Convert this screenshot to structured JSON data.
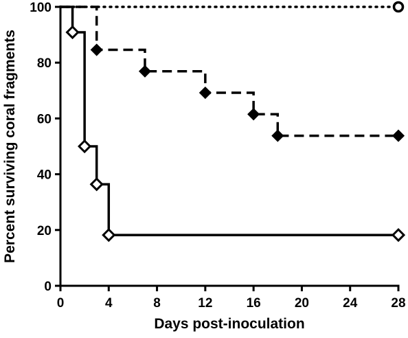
{
  "chart_data": {
    "type": "line",
    "step": true,
    "xlabel": "Days post-inoculation",
    "ylabel": "Percent surviving coral fragments",
    "xlim": [
      0,
      28
    ],
    "ylim": [
      0,
      100
    ],
    "xticks": [
      0,
      4,
      8,
      12,
      16,
      20,
      24,
      28
    ],
    "yticks": [
      0,
      20,
      40,
      60,
      80,
      100
    ],
    "grid": false,
    "legend": "none",
    "series": [
      {
        "line_style": "dotted",
        "marker": "open-circle",
        "x": [
          0,
          28
        ],
        "y": [
          100,
          100
        ],
        "marker_x": [
          28
        ],
        "marker_y": [
          100
        ]
      },
      {
        "line_style": "dashed",
        "marker": "filled-diamond",
        "x": [
          0,
          3,
          7,
          12,
          16,
          18,
          28
        ],
        "y": [
          100,
          84.6,
          76.9,
          69.2,
          61.5,
          53.8,
          53.8
        ],
        "marker_x": [
          3,
          7,
          12,
          16,
          18,
          28
        ],
        "marker_y": [
          84.6,
          76.9,
          69.2,
          61.5,
          53.8,
          53.8
        ]
      },
      {
        "line_style": "solid",
        "marker": "open-diamond",
        "x": [
          0,
          1,
          2,
          3,
          4,
          28
        ],
        "y": [
          100,
          90.9,
          50,
          36.4,
          18.2,
          18.2
        ],
        "marker_x": [
          1,
          2,
          3,
          4,
          28
        ],
        "marker_y": [
          90.9,
          50,
          36.4,
          18.2,
          18.2
        ]
      }
    ]
  }
}
